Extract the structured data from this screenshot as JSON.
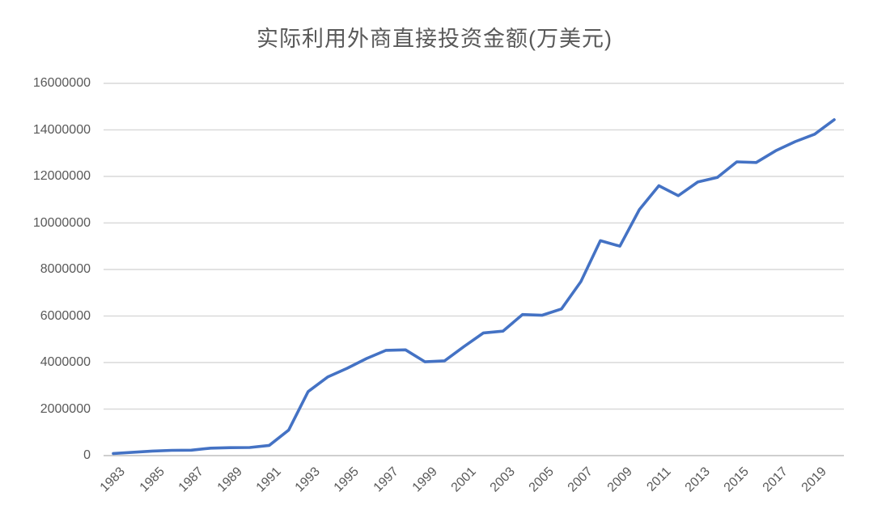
{
  "chart": {
    "title": "实际利用外商直接投资金额(万美元)"
  },
  "chart_data": {
    "type": "line",
    "title": "实际利用外商直接投资金额(万美元)",
    "xlabel": "",
    "ylabel": "",
    "x": [
      1983,
      1984,
      1985,
      1986,
      1987,
      1988,
      1989,
      1990,
      1991,
      1992,
      1993,
      1994,
      1995,
      1996,
      1997,
      1998,
      1999,
      2000,
      2001,
      2002,
      2003,
      2004,
      2005,
      2006,
      2007,
      2008,
      2009,
      2010,
      2011,
      2012,
      2013,
      2014,
      2015,
      2016,
      2017,
      2018,
      2019,
      2020
    ],
    "series": [
      {
        "name": "实际利用外商直接投资金额(万美元)",
        "values": [
          91600,
          141900,
          195600,
          224400,
          231400,
          319400,
          339200,
          348700,
          436600,
          1100700,
          2751500,
          3376700,
          3752100,
          4172500,
          4525700,
          4546300,
          4031900,
          4071500,
          4687800,
          5274300,
          5350500,
          6063000,
          6032500,
          6302100,
          7476800,
          9239500,
          9003300,
          10573500,
          11601100,
          11171600,
          11758600,
          11956000,
          12627000,
          12600000,
          13104000,
          13497000,
          13814000,
          14437000
        ]
      }
    ],
    "ylim": [
      0,
      16000000
    ],
    "y_ticks": [
      0,
      2000000,
      4000000,
      6000000,
      8000000,
      10000000,
      12000000,
      14000000,
      16000000
    ],
    "x_tick_labels": [
      "1983",
      "1985",
      "1987",
      "1989",
      "1991",
      "1993",
      "1995",
      "1997",
      "1999",
      "2001",
      "2003",
      "2005",
      "2007",
      "2009",
      "2011",
      "2013",
      "2015",
      "2017",
      "2019"
    ],
    "grid": "horizontal",
    "legend_position": "none",
    "line_color": "#4472C4",
    "gridline_color": "#D9D9D9",
    "axis_line_color": "#BFBFBF",
    "text_color": "#595959",
    "background_color": "#FFFFFF"
  }
}
